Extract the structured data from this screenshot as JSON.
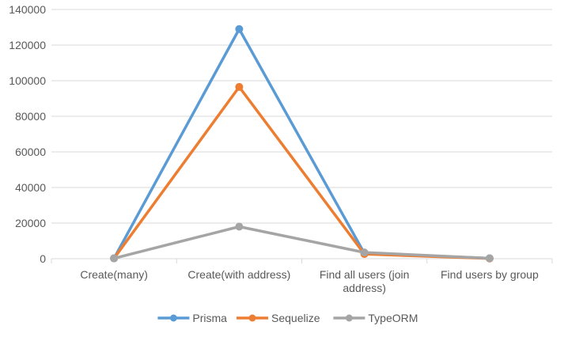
{
  "chart_data": {
    "type": "line",
    "categories": [
      [
        "Create(many)"
      ],
      [
        "Create(with address)"
      ],
      [
        "Find all users (join",
        "address)"
      ],
      [
        "Find users by group"
      ]
    ],
    "yticks": [
      "0",
      "20000",
      "40000",
      "60000",
      "80000",
      "100000",
      "120000",
      "140000"
    ],
    "ylim": [
      0,
      140000
    ],
    "grid": true,
    "legend_position": "bottom",
    "series": [
      {
        "name": "Prisma",
        "color": "#5B9BD5",
        "values": [
          200,
          129000,
          3000,
          200
        ]
      },
      {
        "name": "Sequelize",
        "color": "#ED7D31",
        "values": [
          200,
          96500,
          2600,
          100
        ]
      },
      {
        "name": "TypeORM",
        "color": "#A5A5A5",
        "values": [
          200,
          18000,
          3500,
          200
        ]
      }
    ]
  }
}
